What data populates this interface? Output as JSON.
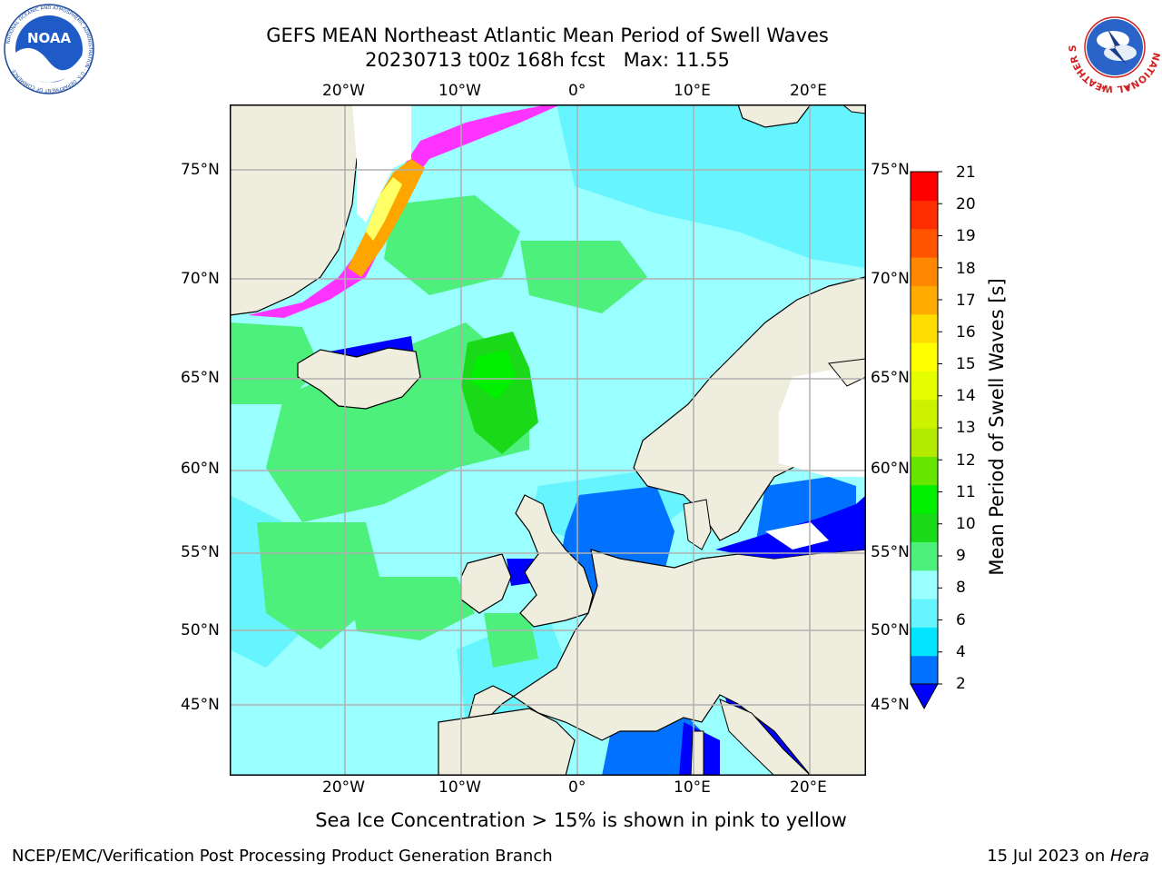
{
  "header": {
    "title_line1": "GEFS MEAN Northeast Atlantic Mean Period of Swell Waves",
    "title_line2": "20230713 t00z 168h fcst   Max: 11.55"
  },
  "logos": {
    "left": {
      "name": "noaa-logo",
      "text": "NOAA",
      "ring_text": "NATIONAL OCEANIC AND ATMOSPHERIC ADMINISTRATION · U.S. DEPARTMENT OF COMMERCE"
    },
    "right": {
      "name": "nws-logo",
      "ring_text": "NATIONAL WEATHER SERVICE"
    }
  },
  "map": {
    "lon_labels": [
      "20°W",
      "10°W",
      "0°",
      "10°E",
      "20°E"
    ],
    "lat_labels": [
      "75°N",
      "70°N",
      "65°N",
      "60°N",
      "55°N",
      "50°N",
      "45°N"
    ],
    "note": "Sea Ice Concentration > 15% is shown in pink to yellow",
    "colors": {
      "land": "#efedde",
      "sea_ice": "#ffffff",
      "grid": "#b0b0b0",
      "ice_pink": "#ff33ff",
      "ice_orange": "#ffa500",
      "ice_yellow": "#ffff66"
    }
  },
  "colorbar": {
    "label": "Mean Period of Swell Waves [s]",
    "ticks": [
      "21",
      "20",
      "19",
      "18",
      "17",
      "16",
      "15",
      "14",
      "13",
      "12",
      "11",
      "10",
      "9",
      "8",
      "6",
      "4",
      "2"
    ],
    "colors_bottom_to_top": [
      "#0072ff",
      "#00e4ff",
      "#66f4ff",
      "#99ffff",
      "#4cf07a",
      "#19d919",
      "#00f000",
      "#66e600",
      "#b3ea00",
      "#ccf200",
      "#e6ff00",
      "#ffff00",
      "#ffdd00",
      "#ffaa00",
      "#ff8800",
      "#ff5500",
      "#ff2d00",
      "#ff0000"
    ],
    "extend_color": "#0000ff"
  },
  "footer": {
    "left": "NCEP/EMC/Verification Post Processing Product Generation Branch",
    "date": "15 Jul 2023",
    "on": " on ",
    "host": "Hera"
  }
}
